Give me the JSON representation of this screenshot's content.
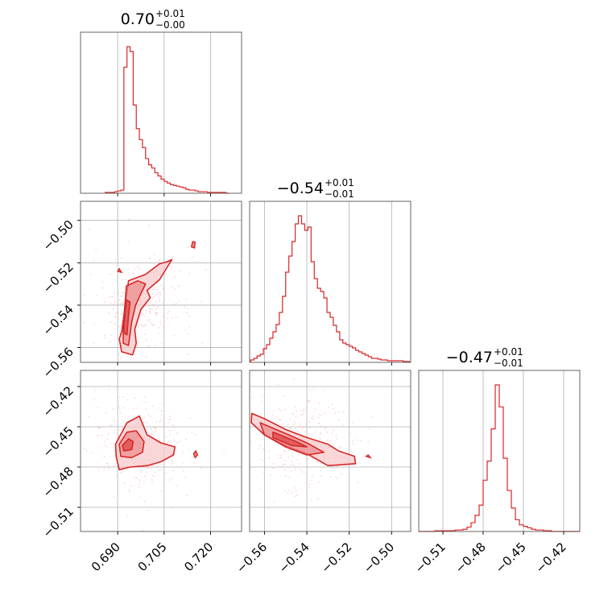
{
  "chart_data": {
    "type": "corner",
    "color": "#d62728",
    "fill_colors": [
      "#f7c6c7",
      "#eb8a8b",
      "#d62728"
    ],
    "grid": true,
    "parameters": [
      {
        "title_main": "0.70",
        "title_plus": "+0.01",
        "title_minus": "−0.00",
        "range": [
          0.678,
          0.73
        ],
        "ticks": [
          0.69,
          0.705,
          0.72
        ],
        "tick_labels": [
          "0.690",
          "0.705",
          "0.720"
        ]
      },
      {
        "title_main": "−0.54",
        "title_plus": "+0.01",
        "title_minus": "−0.01",
        "range": [
          -0.567,
          -0.491
        ],
        "ticks": [
          -0.56,
          -0.54,
          -0.52,
          -0.5
        ],
        "tick_labels": [
          "−0.56",
          "−0.54",
          "−0.52",
          "−0.50"
        ]
      },
      {
        "title_main": "−0.47",
        "title_plus": "+0.01",
        "title_minus": "−0.01",
        "range": [
          -0.528,
          -0.408
        ],
        "ticks": [
          -0.51,
          -0.48,
          -0.45,
          -0.42
        ],
        "tick_labels": [
          "−0.51",
          "−0.48",
          "−0.45",
          "−0.42"
        ]
      }
    ],
    "histograms": [
      {
        "param": 0,
        "bin_edges": [
          0.686,
          0.687,
          0.688,
          0.689,
          0.69,
          0.691,
          0.692,
          0.693,
          0.694,
          0.695,
          0.696,
          0.697,
          0.698,
          0.699,
          0.7,
          0.701,
          0.702,
          0.703,
          0.704,
          0.705,
          0.706,
          0.707,
          0.708,
          0.709,
          0.71,
          0.711,
          0.712,
          0.713,
          0.714,
          0.715,
          0.716,
          0.717,
          0.718,
          0.719,
          0.72,
          0.721,
          0.722,
          0.723,
          0.724,
          0.725,
          0.726
        ],
        "counts": [
          1,
          1,
          1,
          2,
          3,
          4,
          160,
          186,
          180,
          112,
          82,
          68,
          58,
          44,
          36,
          32,
          26,
          22,
          18,
          15,
          13,
          11,
          10,
          9,
          8,
          7,
          5,
          4,
          4,
          3,
          2,
          2,
          2,
          1,
          1,
          1,
          1,
          1,
          1,
          0
        ]
      },
      {
        "param": 1,
        "bin_edges": [
          -0.5665,
          -0.565,
          -0.5635,
          -0.562,
          -0.5605,
          -0.559,
          -0.5575,
          -0.556,
          -0.5545,
          -0.553,
          -0.5515,
          -0.55,
          -0.5485,
          -0.547,
          -0.5455,
          -0.544,
          -0.5425,
          -0.541,
          -0.5395,
          -0.538,
          -0.5365,
          -0.535,
          -0.5335,
          -0.532,
          -0.5305,
          -0.529,
          -0.5275,
          -0.526,
          -0.5245,
          -0.523,
          -0.5215,
          -0.52,
          -0.5185,
          -0.517,
          -0.5155,
          -0.514,
          -0.5125,
          -0.511,
          -0.5095,
          -0.508,
          -0.5065,
          -0.505,
          -0.5035,
          -0.502,
          -0.5005,
          -0.499,
          -0.4975,
          -0.496,
          -0.4945,
          -0.493,
          -0.4915
        ],
        "counts": [
          3,
          5,
          8,
          10,
          17,
          22,
          30,
          38,
          47,
          62,
          82,
          112,
          132,
          150,
          172,
          182,
          172,
          164,
          168,
          125,
          104,
          92,
          88,
          80,
          62,
          56,
          46,
          38,
          28,
          24,
          22,
          20,
          18,
          15,
          13,
          11,
          9,
          7,
          5,
          5,
          4,
          3,
          3,
          2,
          2,
          2,
          2,
          2,
          1,
          1
        ]
      },
      {
        "param": 2,
        "bin_edges": [
          -0.528,
          -0.525,
          -0.522,
          -0.519,
          -0.516,
          -0.513,
          -0.51,
          -0.507,
          -0.504,
          -0.501,
          -0.498,
          -0.495,
          -0.492,
          -0.489,
          -0.486,
          -0.483,
          -0.48,
          -0.477,
          -0.474,
          -0.471,
          -0.468,
          -0.465,
          -0.462,
          -0.459,
          -0.456,
          -0.453,
          -0.45,
          -0.447,
          -0.444,
          -0.441,
          -0.438,
          -0.435,
          -0.432,
          -0.429,
          -0.426,
          -0.423,
          -0.42,
          -0.417,
          -0.414,
          -0.411,
          -0.408
        ],
        "counts": [
          0,
          0,
          0,
          0,
          1,
          1,
          1,
          1,
          1,
          2,
          2,
          3,
          6,
          12,
          22,
          36,
          70,
          96,
          140,
          200,
          170,
          100,
          56,
          32,
          16,
          9,
          7,
          5,
          3,
          2,
          2,
          1,
          1,
          0,
          0,
          0,
          0,
          0,
          0,
          0
        ]
      }
    ],
    "contour_panels": [
      {
        "x_param": 0,
        "y_param": 1,
        "levels": [
          [
            [
              0.6913,
              -0.5525
            ],
            [
              0.6935,
              -0.5285
            ],
            [
              0.699,
              -0.5255
            ],
            [
              0.7035,
              -0.5205
            ],
            [
              0.706,
              -0.5195
            ],
            [
              0.7075,
              -0.5185
            ],
            [
              0.7035,
              -0.528
            ],
            [
              0.6995,
              -0.533
            ],
            [
              0.7005,
              -0.5365
            ],
            [
              0.6975,
              -0.542
            ],
            [
              0.6955,
              -0.5515
            ],
            [
              0.696,
              -0.558
            ],
            [
              0.6948,
              -0.5635
            ],
            [
              0.6913,
              -0.562
            ],
            [
              0.6905,
              -0.556
            ]
          ],
          [
            [
              0.6918,
              -0.5505
            ],
            [
              0.6928,
              -0.531
            ],
            [
              0.6965,
              -0.5285
            ],
            [
              0.699,
              -0.53
            ],
            [
              0.6975,
              -0.5345
            ],
            [
              0.6958,
              -0.54
            ],
            [
              0.6945,
              -0.548
            ],
            [
              0.6935,
              -0.559
            ],
            [
              0.6918,
              -0.558
            ]
          ],
          [
            [
              0.692,
              -0.549
            ],
            [
              0.6928,
              -0.5375
            ],
            [
              0.694,
              -0.5385
            ],
            [
              0.6935,
              -0.545
            ],
            [
              0.693,
              -0.554
            ],
            [
              0.692,
              -0.553
            ]
          ]
        ],
        "islands": [
          [
            [
              0.7138,
              -0.5125
            ],
            [
              0.7142,
              -0.51
            ],
            [
              0.715,
              -0.5102
            ],
            [
              0.7148,
              -0.513
            ]
          ],
          [
            [
              0.69,
              -0.524
            ],
            [
              0.6905,
              -0.5228
            ],
            [
              0.6912,
              -0.5245
            ]
          ]
        ]
      },
      {
        "x_param": 0,
        "y_param": 2,
        "levels": [
          [
            [
              0.6893,
              -0.463
            ],
            [
              0.693,
              -0.447
            ],
            [
              0.697,
              -0.442
            ],
            [
              0.6995,
              -0.456
            ],
            [
              0.704,
              -0.462
            ],
            [
              0.7085,
              -0.465
            ],
            [
              0.708,
              -0.471
            ],
            [
              0.704,
              -0.476
            ],
            [
              0.6995,
              -0.479
            ],
            [
              0.694,
              -0.48
            ],
            [
              0.6905,
              -0.482
            ],
            [
              0.6895,
              -0.472
            ]
          ],
          [
            [
              0.6905,
              -0.463
            ],
            [
              0.693,
              -0.454
            ],
            [
              0.696,
              -0.453
            ],
            [
              0.6985,
              -0.461
            ],
            [
              0.698,
              -0.469
            ],
            [
              0.6945,
              -0.473
            ],
            [
              0.691,
              -0.472
            ]
          ],
          [
            [
              0.6915,
              -0.464
            ],
            [
              0.6935,
              -0.459
            ],
            [
              0.695,
              -0.461
            ],
            [
              0.6945,
              -0.467
            ],
            [
              0.692,
              -0.468
            ]
          ]
        ],
        "islands": [
          [
            [
              0.7145,
              -0.47
            ],
            [
              0.7152,
              -0.468
            ],
            [
              0.7158,
              -0.471
            ],
            [
              0.715,
              -0.473
            ]
          ]
        ]
      },
      {
        "x_param": 1,
        "y_param": 2,
        "levels": [
          [
            [
              -0.566,
              -0.44
            ],
            [
              -0.56,
              -0.444
            ],
            [
              -0.55,
              -0.452
            ],
            [
              -0.54,
              -0.458
            ],
            [
              -0.53,
              -0.463
            ],
            [
              -0.525,
              -0.468
            ],
            [
              -0.5175,
              -0.472
            ],
            [
              -0.517,
              -0.4775
            ],
            [
              -0.53,
              -0.479
            ],
            [
              -0.54,
              -0.47
            ],
            [
              -0.55,
              -0.464
            ],
            [
              -0.56,
              -0.456
            ],
            [
              -0.5662,
              -0.447
            ]
          ],
          [
            [
              -0.562,
              -0.447
            ],
            [
              -0.55,
              -0.455
            ],
            [
              -0.54,
              -0.462
            ],
            [
              -0.532,
              -0.469
            ],
            [
              -0.54,
              -0.471
            ],
            [
              -0.55,
              -0.465
            ],
            [
              -0.56,
              -0.456
            ]
          ],
          [
            [
              -0.556,
              -0.454
            ],
            [
              -0.545,
              -0.461
            ],
            [
              -0.54,
              -0.465
            ],
            [
              -0.547,
              -0.464
            ],
            [
              -0.556,
              -0.458
            ]
          ]
        ],
        "islands": [
          [
            [
              -0.512,
              -0.472
            ],
            [
              -0.511,
              -0.471
            ],
            [
              -0.51,
              -0.473
            ]
          ]
        ]
      }
    ]
  }
}
